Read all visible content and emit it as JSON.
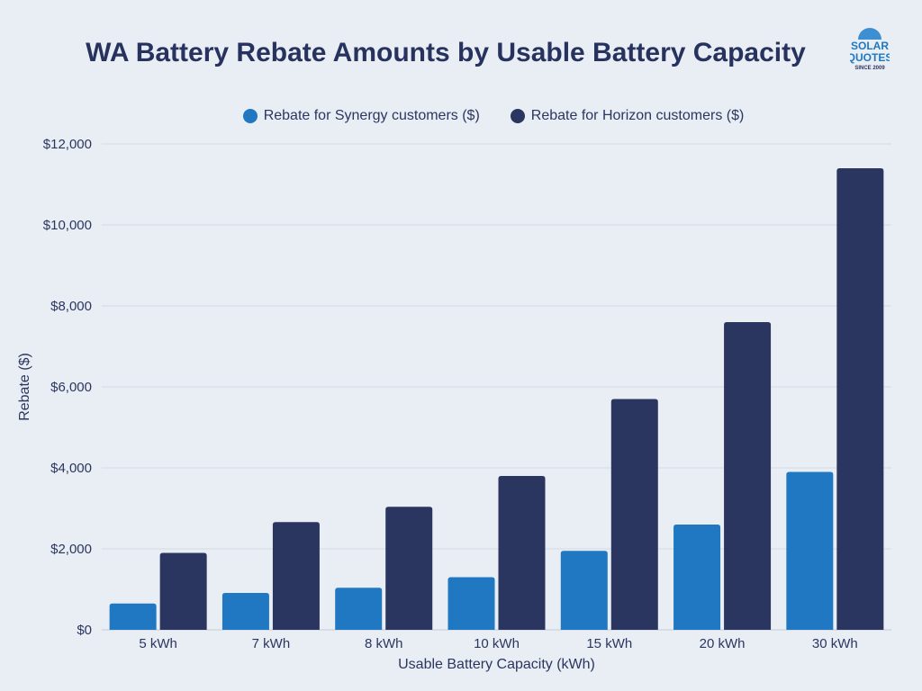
{
  "chart_data": {
    "type": "bar",
    "title": "WA Battery Rebate Amounts by Usable Battery Capacity",
    "xlabel": "Usable Battery Capacity (kWh)",
    "ylabel": "Rebate ($)",
    "ylim": [
      0,
      12000
    ],
    "yticks": [
      0,
      2000,
      4000,
      6000,
      8000,
      10000,
      12000
    ],
    "ytick_labels": [
      "$0",
      "$2,000",
      "$4,000",
      "$6,000",
      "$8,000",
      "$10,000",
      "$12,000"
    ],
    "categories": [
      "5 kWh",
      "7 kWh",
      "8 kWh",
      "10 kWh",
      "15 kWh",
      "20 kWh",
      "30 kWh"
    ],
    "series": [
      {
        "name": "Rebate for Synergy customers ($)",
        "color": "#1f78c1",
        "values": [
          650,
          910,
          1040,
          1300,
          1950,
          2600,
          3900
        ]
      },
      {
        "name": "Rebate for Horizon customers ($)",
        "color": "#2b3660",
        "values": [
          1900,
          2660,
          3040,
          3800,
          5700,
          7600,
          11400
        ]
      }
    ],
    "grid": true,
    "legend_position": "top-center"
  },
  "logo": {
    "line1": "SOLAR",
    "line2": "QUOTES",
    "line3": "SINCE 2009"
  }
}
